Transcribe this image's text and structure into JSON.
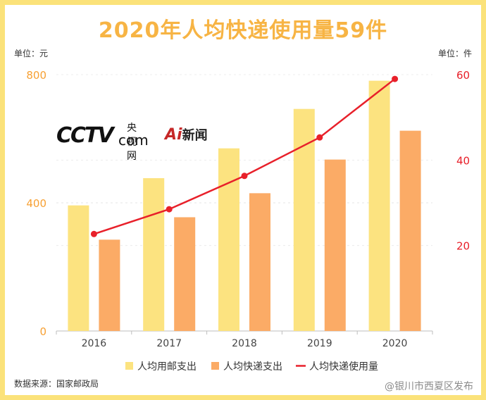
{
  "chart_data": {
    "type": "bar",
    "title": "2020年人均快递使用量59件",
    "left_unit": "单位：元",
    "right_unit": "单位：件",
    "categories": [
      "2016",
      "2017",
      "2018",
      "2019",
      "2020"
    ],
    "series": [
      {
        "name": "人均用邮支出",
        "type": "bar",
        "axis": "left",
        "color": "#fce380",
        "values": [
          392,
          477,
          570,
          693,
          781
        ]
      },
      {
        "name": "人均快递支出",
        "type": "bar",
        "axis": "left",
        "color": "#fbab66",
        "values": [
          285,
          355,
          430,
          535,
          625
        ]
      },
      {
        "name": "人均快递使用量",
        "type": "line",
        "axis": "right",
        "color": "#e8202a",
        "values": [
          22.7,
          28.5,
          36.3,
          45.3,
          59
        ]
      }
    ],
    "y_left": {
      "min": 0,
      "max": 800,
      "ticks": [
        0,
        400,
        800
      ]
    },
    "y_right": {
      "min": 0,
      "max": 60,
      "ticks": [
        20,
        40,
        60
      ]
    },
    "gridlines": "dashed",
    "legend": "bottom"
  },
  "logos": {
    "cctv_main": "CCTV",
    "cctv_small": "央视网",
    "cctv_domain": "com",
    "ai_new_a": "Ai",
    "ai_new_b": "新闻"
  },
  "source": "数据来源：国家邮政局",
  "watermark": "@银川市西夏区发布",
  "colors": {
    "title": "#f7b444",
    "frame": "#fbe27a",
    "left_axis": "#f7a033",
    "right_axis": "#e8202a"
  }
}
